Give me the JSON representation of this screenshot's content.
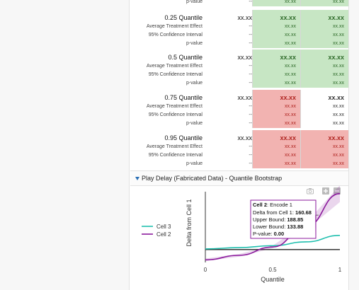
{
  "table": {
    "top_row": {
      "label": "p-value",
      "c1": "--",
      "c2": "xx.xx",
      "c3": "xx.xx"
    },
    "blocks": [
      {
        "quantile": {
          "label": "0.25 Quantile",
          "c1": "xx.xx",
          "c2": "xx.xx",
          "c3": "xx.xx"
        },
        "rows": [
          {
            "label": "Average Treatment Effect",
            "c1": "--",
            "c2": "xx.xx",
            "c3": "xx.xx"
          },
          {
            "label": "95% Confidence Interval",
            "c1": "--",
            "c2": "xx.xx",
            "c3": "xx.xx"
          },
          {
            "label": "p-value",
            "c1": "--",
            "c2": "xx.xx",
            "c3": "xx.xx"
          }
        ]
      },
      {
        "quantile": {
          "label": "0.5 Quantile",
          "c1": "xx.xx",
          "c2": "xx.xx",
          "c3": "xx.xx"
        },
        "rows": [
          {
            "label": "Average Treatment Effect",
            "c1": "--",
            "c2": "xx.xx",
            "c3": "xx.xx"
          },
          {
            "label": "95% Confidence Interval",
            "c1": "--",
            "c2": "xx.xx",
            "c3": "xx.xx"
          },
          {
            "label": "p-value",
            "c1": "--",
            "c2": "xx.xx",
            "c3": "xx.xx"
          }
        ]
      },
      {
        "quantile": {
          "label": "0.75 Quantile",
          "c1": "xx.xx",
          "c2": "xx.xx",
          "c3": "xx.xx"
        },
        "rows": [
          {
            "label": "Average Treatment Effect",
            "c1": "--",
            "c2": "xx.xx",
            "c3": "xx.xx"
          },
          {
            "label": "95% Confidence Interval",
            "c1": "--",
            "c2": "xx.xx",
            "c3": "xx.xx"
          },
          {
            "label": "p-value",
            "c1": "--",
            "c2": "xx.xx",
            "c3": "xx.xx"
          }
        ]
      },
      {
        "quantile": {
          "label": "0.95 Quantile",
          "c1": "xx.xx",
          "c2": "xx.xx",
          "c3": "xx.xx"
        },
        "rows": [
          {
            "label": "Average Treatment Effect",
            "c1": "--",
            "c2": "xx.xx",
            "c3": "xx.xx"
          },
          {
            "label": "95% Confidence Interval",
            "c1": "--",
            "c2": "xx.xx",
            "c3": "xx.xx"
          },
          {
            "label": "p-value",
            "c1": "--",
            "c2": "xx.xx",
            "c3": "xx.xx"
          }
        ]
      }
    ],
    "colors": {
      "significant_positive": "#c7e6c4",
      "significant_negative": "#f2b3b1",
      "neutral": "#ffffff"
    }
  },
  "panel": {
    "title": "Play Delay (Fabricated Data) - Quantile Bootstrap"
  },
  "toolbar": {
    "icons": [
      "camera-icon",
      "zoom-in-icon",
      "zoom-out-icon"
    ]
  },
  "chart_data": {
    "type": "line",
    "xlabel": "Quantile",
    "ylabel": "Delta from Cell 1",
    "x_ticks": [
      "0",
      "0.5",
      "1"
    ],
    "xlim": [
      0,
      1
    ],
    "series": [
      {
        "name": "Cell 3",
        "color": "#1fbfae",
        "x": [
          0,
          0.25,
          0.5,
          0.75,
          1
        ],
        "y": [
          2,
          6,
          12,
          24,
          44
        ]
      },
      {
        "name": "Cell 2",
        "color": "#8b1a9c",
        "x": [
          0,
          0.25,
          0.5,
          0.75,
          1
        ],
        "y": [
          -32,
          -18,
          8,
          72,
          174
        ]
      }
    ],
    "legend_position": "left",
    "tooltip": {
      "series_label": "Cell 2",
      "series_suffix": ": Encode 1",
      "rows": [
        {
          "label": "Delta from Cell 1: ",
          "value": "160.68"
        },
        {
          "label": "Upper Bound: ",
          "value": "188.85"
        },
        {
          "label": "Lower Bound: ",
          "value": "133.88"
        },
        {
          "label": "P-value: ",
          "value": "0.00"
        }
      ]
    }
  }
}
